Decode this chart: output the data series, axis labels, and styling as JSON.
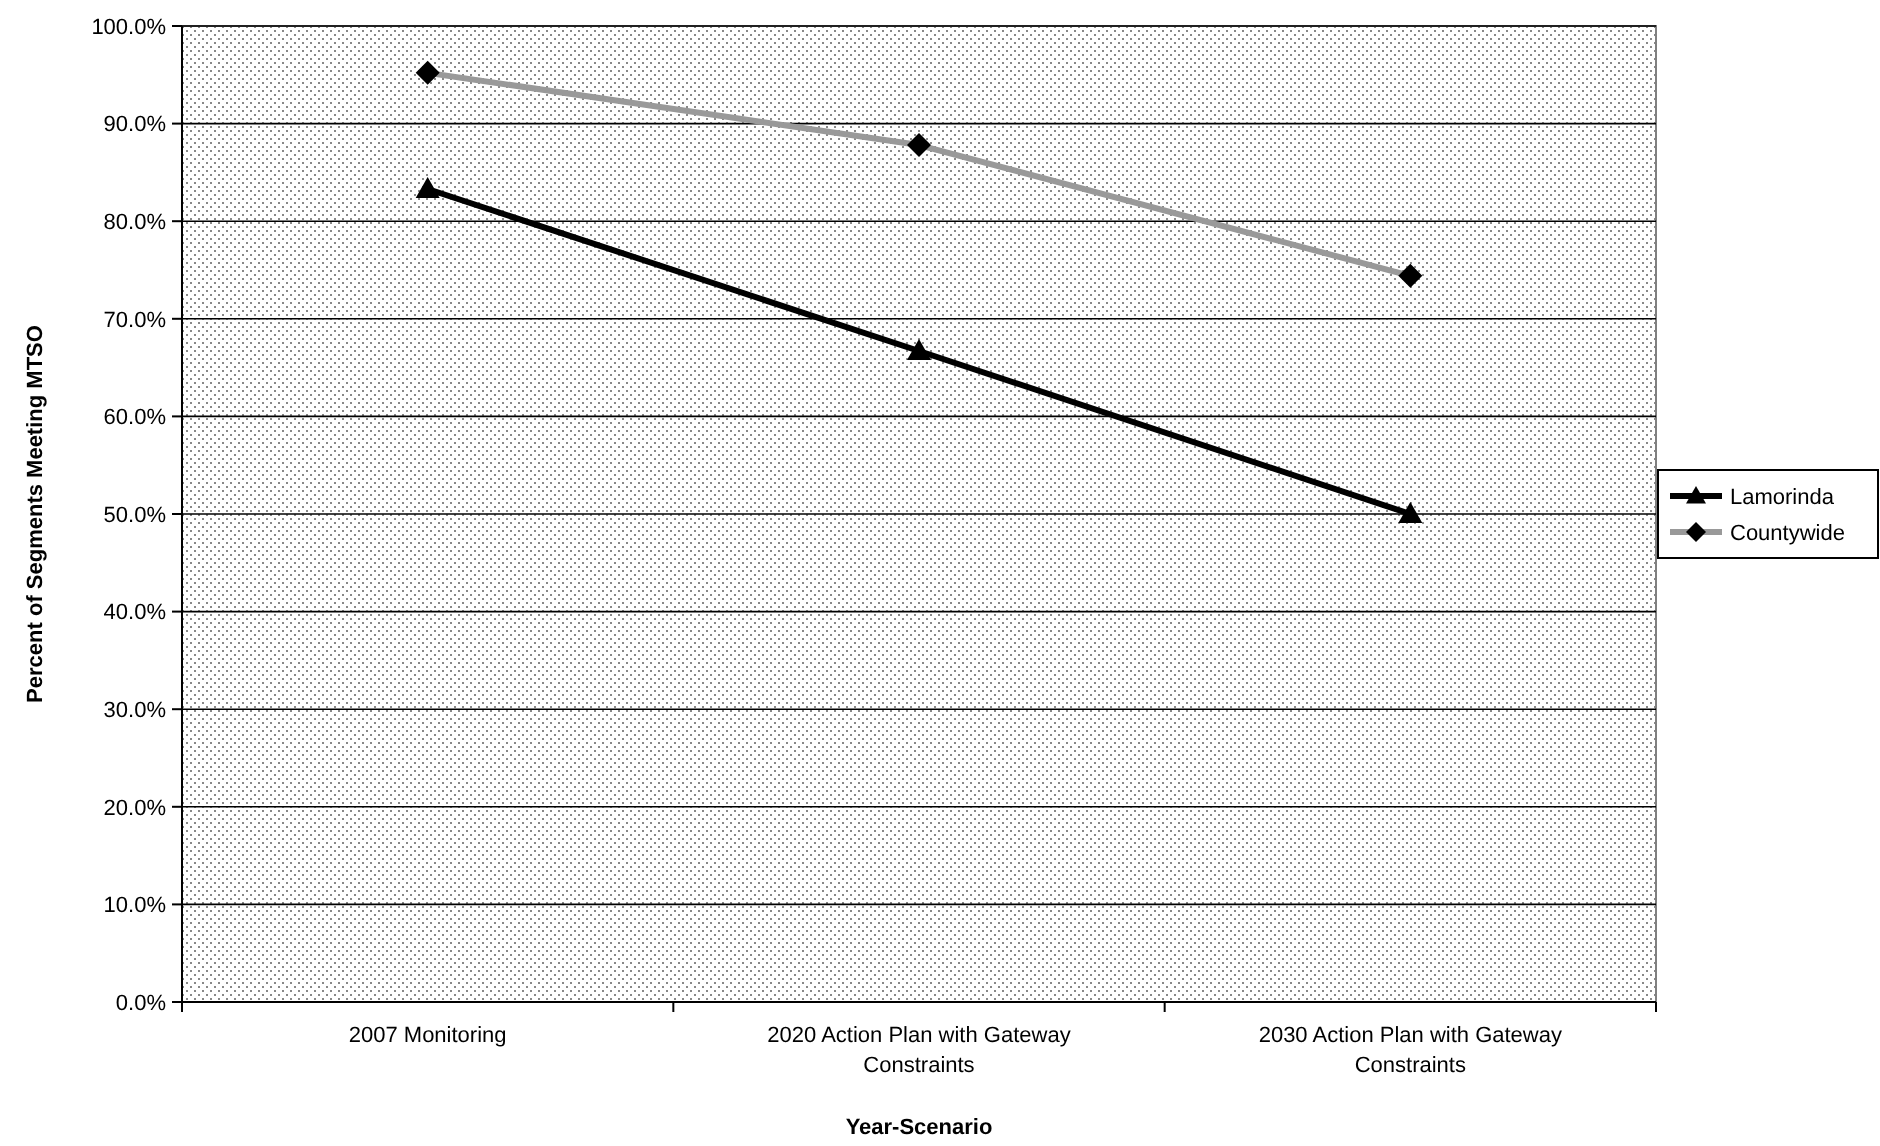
{
  "chart_data": {
    "type": "line",
    "xlabel": "Year-Scenario",
    "ylabel": "Percent of Segments Meeting MTSO",
    "categories": [
      "2007 Monitoring",
      "2020 Action Plan with Gateway Constraints",
      "2030 Action Plan with Gateway Constraints"
    ],
    "series": [
      {
        "name": "Lamorinda",
        "color": "#000000",
        "marker": "triangle",
        "values": [
          83.3,
          66.7,
          50.0
        ]
      },
      {
        "name": "Countywide",
        "color": "#999999",
        "marker": "diamond",
        "values": [
          95.2,
          87.8,
          74.4
        ]
      }
    ],
    "ylim": [
      0,
      100
    ],
    "yticks": [
      {
        "value": 0,
        "label": "0.0%"
      },
      {
        "value": 10,
        "label": "10.0%"
      },
      {
        "value": 20,
        "label": "20.0%"
      },
      {
        "value": 30,
        "label": "30.0%"
      },
      {
        "value": 40,
        "label": "40.0%"
      },
      {
        "value": 50,
        "label": "50.0%"
      },
      {
        "value": 60,
        "label": "60.0%"
      },
      {
        "value": 70,
        "label": "70.0%"
      },
      {
        "value": 80,
        "label": "80.0%"
      },
      {
        "value": 90,
        "label": "90.0%"
      },
      {
        "value": 100,
        "label": "100.0%"
      }
    ],
    "grid": "y",
    "legend": "right",
    "line_style": "solid"
  }
}
